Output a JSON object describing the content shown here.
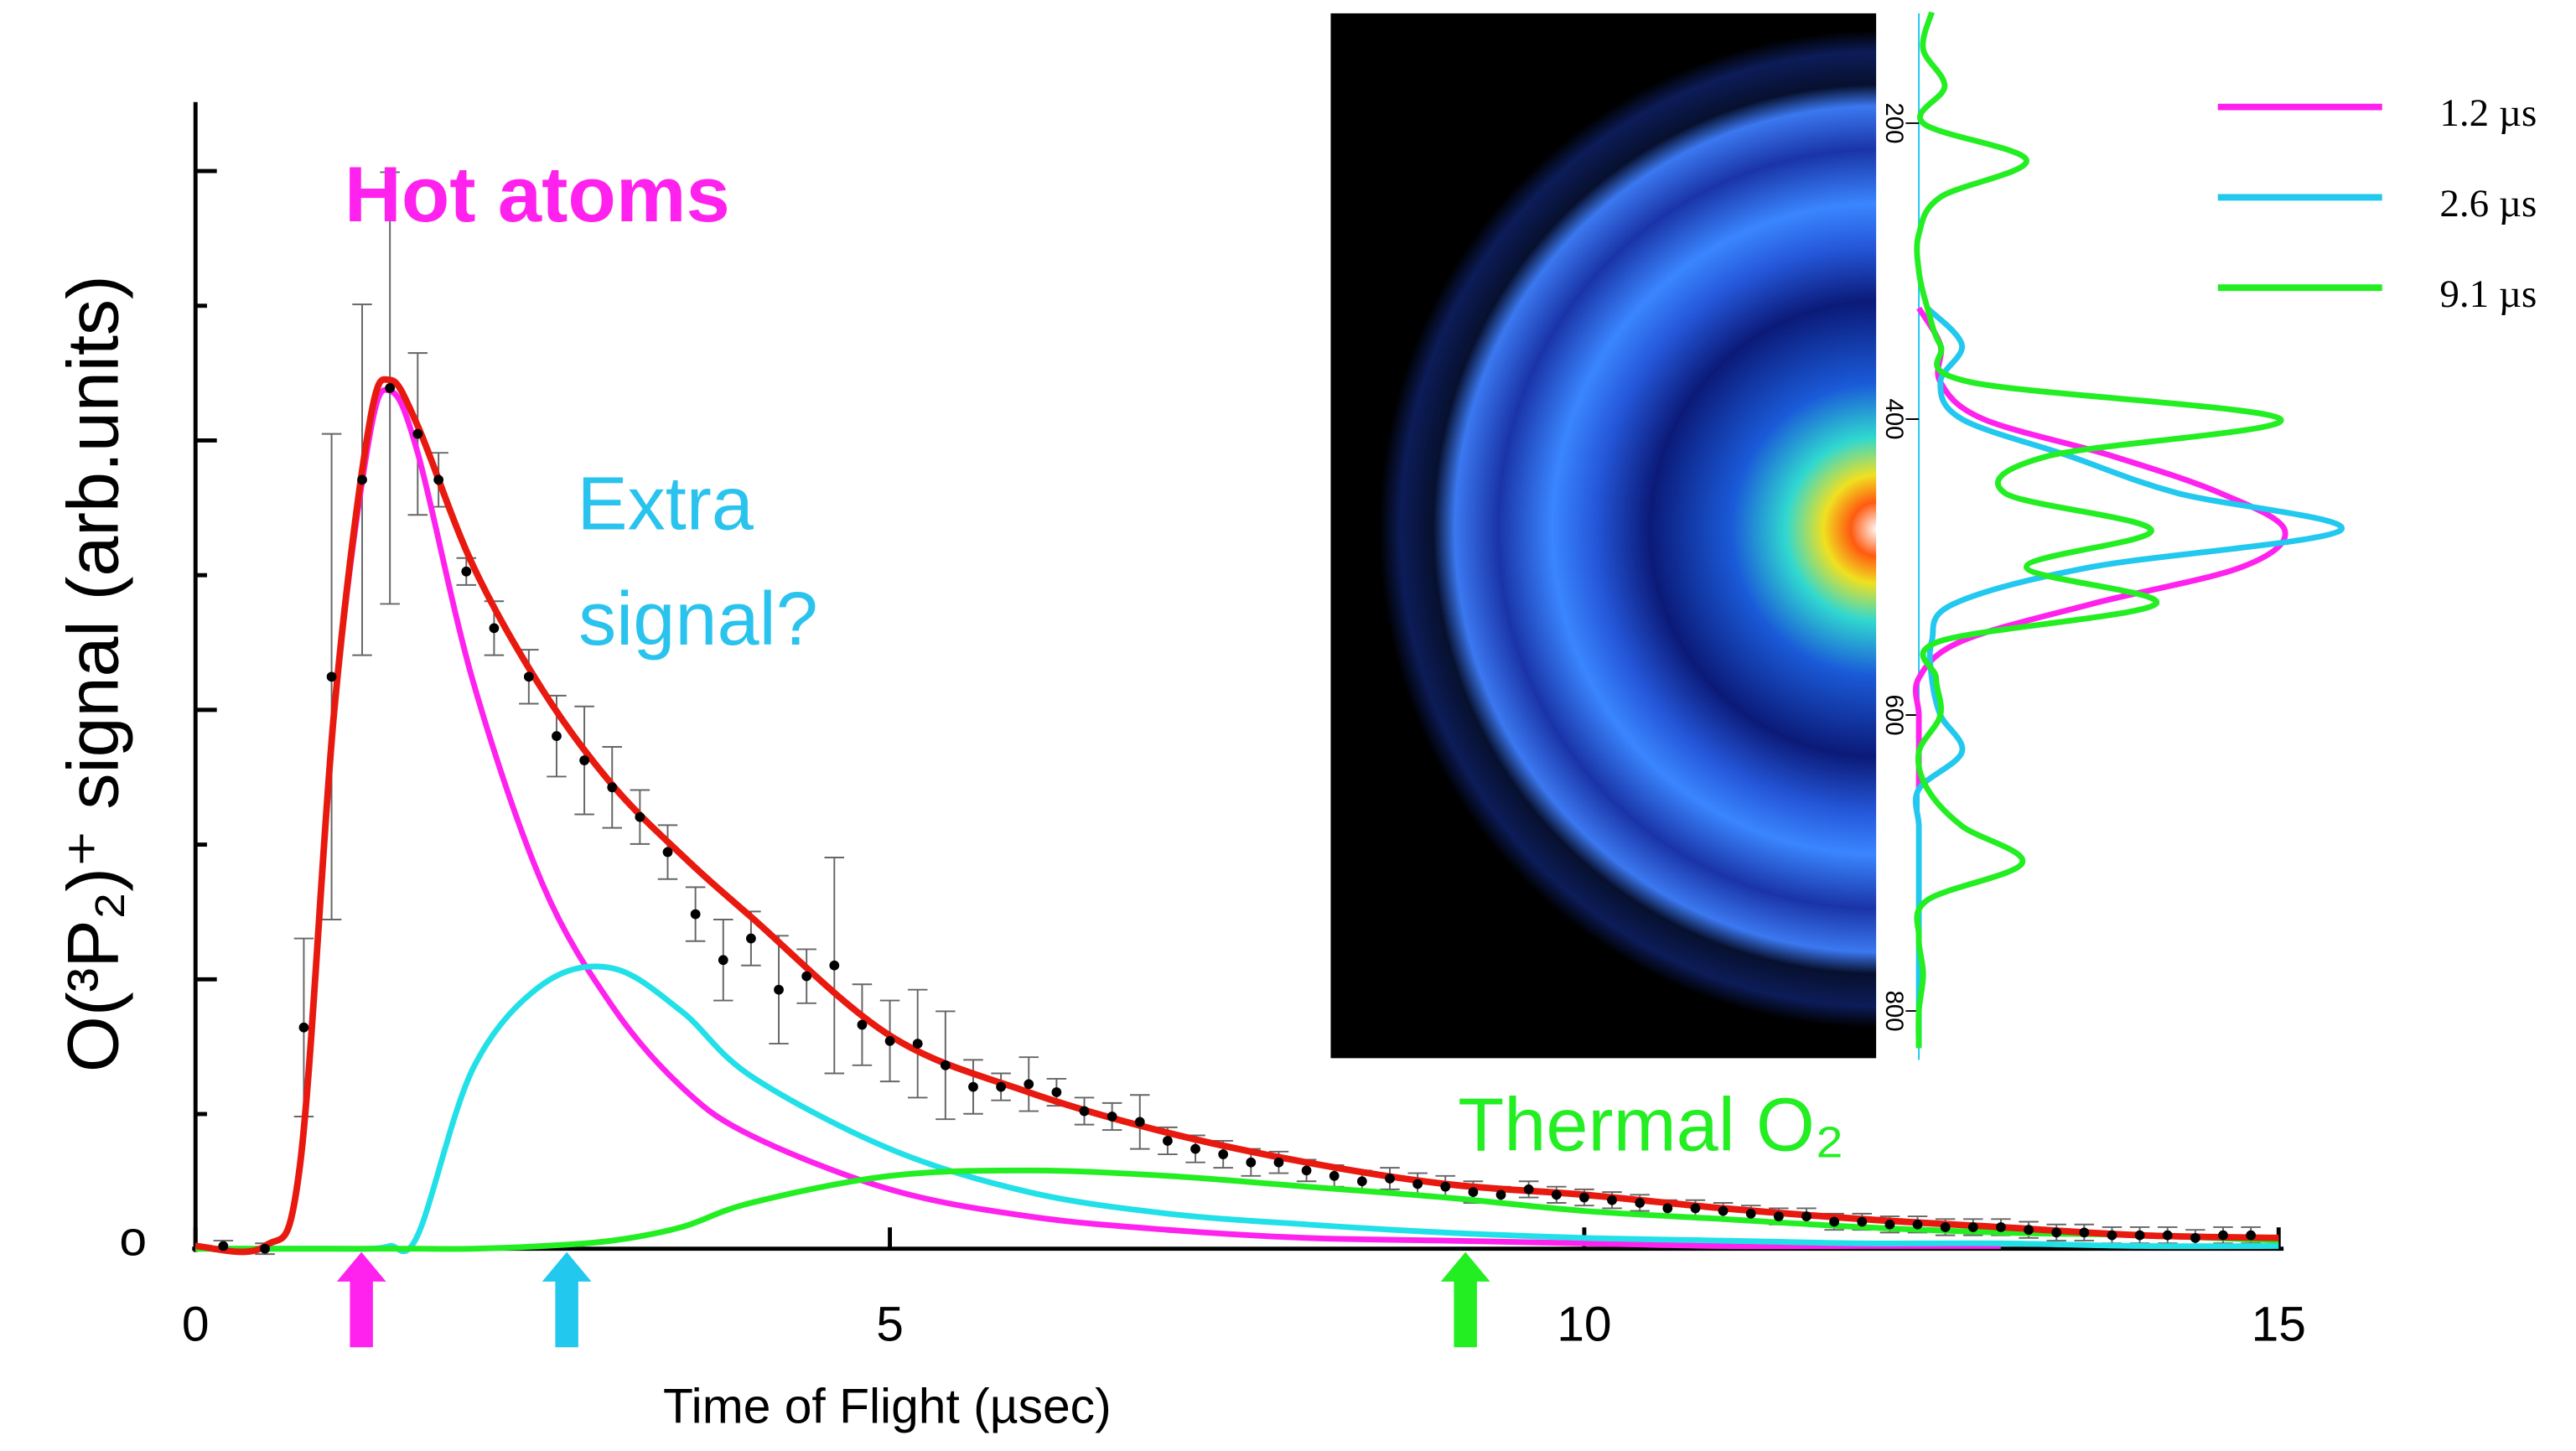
{
  "chart_data": [
    {
      "type": "scatter",
      "x_label": "Time of Flight (µsec)",
      "y_label": "O(³P₂)⁺ signal (arb.units)",
      "annotations": [
        {
          "lines": [
            "Hot atoms"
          ],
          "color": "#ff22ee"
        },
        {
          "lines": [
            "Extra",
            "signal?"
          ],
          "color": "#2ac3ee"
        },
        {
          "lines": [
            "Thermal O₂"
          ],
          "color": "#22ee22"
        }
      ],
      "xlim": [
        0,
        15
      ],
      "xticks": [
        0,
        5,
        10,
        15
      ],
      "ylim": [
        0,
        4.25
      ],
      "yticks": [
        {
          "value": 0,
          "label": "o"
        }
      ],
      "color": "#000000",
      "x": [
        0.2,
        0.5,
        0.78,
        0.98,
        1.2,
        1.4,
        1.6,
        1.75,
        1.95,
        2.15,
        2.4,
        2.6,
        2.8,
        3.0,
        3.2,
        3.4,
        3.6,
        3.8,
        4.0,
        4.2,
        4.4,
        4.6,
        4.8,
        5.0,
        5.2,
        5.4,
        5.6,
        5.8,
        6.0,
        6.2,
        6.4,
        6.6,
        6.8,
        7.0,
        7.2,
        7.4,
        7.6,
        7.8,
        8.0,
        8.2,
        8.4,
        8.6,
        8.8,
        9.0,
        9.2,
        9.4,
        9.6,
        9.8,
        10.0,
        10.2,
        10.4,
        10.6,
        10.8,
        11.0,
        11.2,
        11.4,
        11.6,
        11.8,
        12.0,
        12.2,
        12.4,
        12.6,
        12.8,
        13.0,
        13.2,
        13.4,
        13.6,
        13.8,
        14.0,
        14.2,
        14.4,
        14.6,
        14.8
      ],
      "values": [
        0.01,
        0.0,
        0.82,
        2.12,
        2.85,
        3.19,
        3.02,
        2.85,
        2.51,
        2.3,
        2.12,
        1.9,
        1.81,
        1.71,
        1.6,
        1.47,
        1.24,
        1.07,
        1.15,
        0.96,
        1.01,
        1.05,
        0.83,
        0.77,
        0.76,
        0.68,
        0.6,
        0.6,
        0.61,
        0.58,
        0.51,
        0.49,
        0.47,
        0.4,
        0.37,
        0.35,
        0.32,
        0.32,
        0.29,
        0.27,
        0.25,
        0.26,
        0.24,
        0.23,
        0.21,
        0.2,
        0.22,
        0.2,
        0.19,
        0.18,
        0.17,
        0.15,
        0.15,
        0.14,
        0.13,
        0.12,
        0.12,
        0.1,
        0.1,
        0.09,
        0.09,
        0.08,
        0.08,
        0.08,
        0.07,
        0.06,
        0.06,
        0.05,
        0.05,
        0.05,
        0.04,
        0.05,
        0.05
      ],
      "errors": [
        0.02,
        0.02,
        0.33,
        0.9,
        0.65,
        0.8,
        0.3,
        0.1,
        0.05,
        0.1,
        0.1,
        0.15,
        0.2,
        0.15,
        0.1,
        0.1,
        0.1,
        0.15,
        0.1,
        0.2,
        0.1,
        0.4,
        0.15,
        0.15,
        0.2,
        0.2,
        0.1,
        0.05,
        0.1,
        0.05,
        0.05,
        0.05,
        0.1,
        0.05,
        0.05,
        0.05,
        0.05,
        0.04,
        0.04,
        0.04,
        0.04,
        0.04,
        0.04,
        0.04,
        0.04,
        0.03,
        0.03,
        0.03,
        0.03,
        0.03,
        0.03,
        0.03,
        0.03,
        0.03,
        0.03,
        0.03,
        0.03,
        0.03,
        0.03,
        0.03,
        0.03,
        0.03,
        0.03,
        0.03,
        0.03,
        0.03,
        0.03,
        0.03,
        0.03,
        0.03,
        0.03,
        0.03,
        0.03
      ],
      "curves": {
        "x": [
          0,
          0.5,
          0.75,
          1,
          1.25,
          1.4,
          1.6,
          2,
          2.5,
          3,
          3.5,
          4,
          5,
          6,
          7,
          8,
          9,
          10,
          11,
          12,
          13,
          14,
          15
        ],
        "series": [
          {
            "color": "#ff22ee",
            "values": [
              0.01,
              0.01,
              0.3,
              2.0,
              3.0,
              3.18,
              2.95,
              2.1,
              1.35,
              0.9,
              0.6,
              0.42,
              0.22,
              0.12,
              0.07,
              0.04,
              0.03,
              0.02,
              0.01,
              0.01,
              0.01,
              null,
              null
            ]
          },
          {
            "color": "#22e0e8",
            "values": [
              0,
              0,
              0,
              0,
              0,
              0.01,
              0.05,
              0.67,
              0.98,
              1.04,
              0.88,
              0.64,
              0.37,
              0.21,
              0.13,
              0.09,
              0.06,
              0.04,
              0.03,
              0.02,
              0.02,
              0.01,
              0.01
            ]
          },
          {
            "color": "#22ee22",
            "values": [
              0,
              0,
              0,
              0,
              0,
              0,
              0,
              0,
              0.01,
              0.03,
              0.08,
              0.17,
              0.27,
              0.29,
              0.27,
              0.23,
              0.19,
              0.14,
              0.11,
              0.08,
              0.06,
              0.05,
              0.03
            ]
          },
          {
            "color": "#e8190f",
            "values": [
              0.01,
              0.01,
              0.3,
              2.0,
              3.05,
              3.22,
              3.05,
              2.53,
              2.07,
              1.72,
              1.46,
              1.23,
              0.79,
              0.58,
              0.43,
              0.32,
              0.24,
              0.2,
              0.15,
              0.11,
              0.08,
              0.05,
              0.04
            ]
          }
        ]
      }
    },
    {
      "type": "line",
      "orientation": "vertical",
      "legend": "upper right",
      "xlim": [
        128,
        833
      ],
      "xticks": [
        200,
        400,
        600,
        800
      ],
      "ylim": [
        0,
        1
      ],
      "x": [
        125,
        150,
        175,
        200,
        225,
        250,
        275,
        300,
        325,
        350,
        375,
        400,
        425,
        450,
        475,
        500,
        525,
        550,
        575,
        600,
        625,
        650,
        675,
        700,
        725,
        750,
        775,
        800,
        825
      ],
      "series": [
        {
          "name": "1.2 µs",
          "color": "#ff22ee",
          "values": [
            null,
            null,
            null,
            null,
            null,
            null,
            null,
            null,
            0.0,
            0.05,
            0.05,
            0.15,
            0.45,
            0.7,
            0.85,
            0.75,
            0.4,
            0.1,
            0.0,
            0.0,
            0.0,
            0.0,
            null,
            null,
            null,
            null,
            null,
            null,
            null
          ]
        },
        {
          "name": "2.6 µs",
          "color": "#22c8ee",
          "values": [
            null,
            null,
            null,
            null,
            null,
            null,
            null,
            null,
            0.02,
            0.1,
            0.05,
            0.1,
            0.35,
            0.6,
            0.98,
            0.4,
            0.08,
            0.03,
            0.03,
            0.05,
            0.1,
            0.0,
            0.0,
            0.0,
            0.0,
            0.0,
            0.0,
            0.0,
            0.0
          ]
        },
        {
          "name": "9.1 µs",
          "color": "#22ee22",
          "values": [
            0.03,
            0.01,
            0.06,
            0.01,
            0.25,
            0.05,
            0.0,
            0.0,
            0.02,
            0.05,
            0.12,
            0.84,
            0.3,
            0.2,
            0.54,
            0.25,
            0.55,
            0.05,
            0.04,
            0.05,
            0.0,
            0.02,
            0.1,
            0.24,
            0.02,
            0.0,
            0.01,
            0.0,
            0.0
          ]
        }
      ]
    }
  ]
}
